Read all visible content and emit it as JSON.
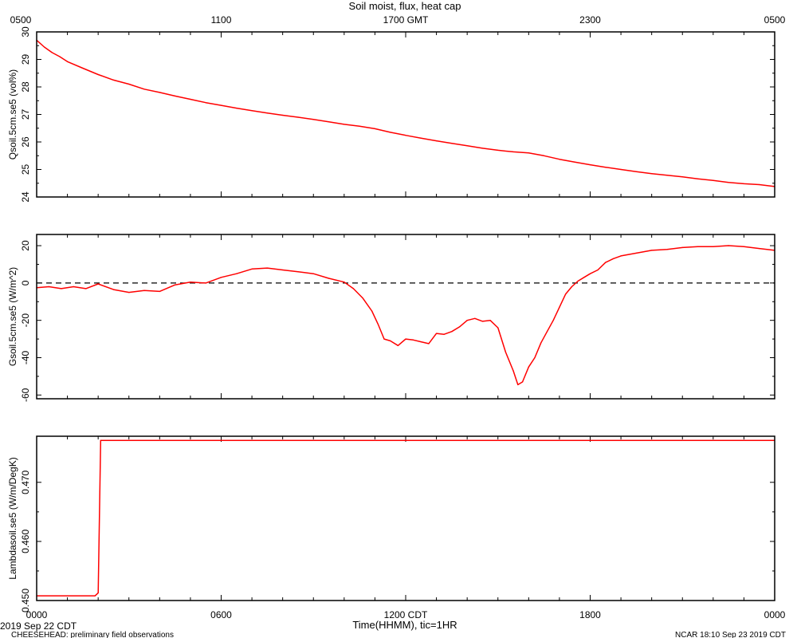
{
  "figure": {
    "title": "Soil moist, flux, heat cap",
    "top_axis_labels": [
      "0500",
      "1100",
      "1700 GMT",
      "2300",
      "0500"
    ],
    "bottom_axis_labels": [
      "0000",
      "0600",
      "1200 CDT",
      "1800",
      "0000"
    ],
    "xlabel": "Time(HHMM), tic=1HR",
    "date_label": "2019 Sep 22 CDT",
    "footer_left": "CHEESEHEAD: preliminary field observations",
    "footer_right": "NCAR 18:10 Sep 23 2019 CDT"
  },
  "chart_data": [
    {
      "type": "line",
      "ylabel": "Qsoil.5cm.se5 (vol%)",
      "ylim": [
        24,
        30
      ],
      "yticks": [
        24,
        25,
        26,
        27,
        28,
        29,
        30
      ],
      "ytick_labels": [
        "24",
        "25",
        "26",
        "27",
        "28",
        "29",
        "30"
      ],
      "xlim": [
        0,
        24
      ],
      "series": [
        {
          "color": "#ff0000",
          "x": [
            0,
            0.25,
            0.5,
            0.75,
            1,
            1.5,
            2,
            2.5,
            3,
            3.5,
            4,
            4.5,
            5,
            5.5,
            6,
            6.5,
            7,
            7.5,
            8,
            8.5,
            9,
            9.5,
            10,
            10.5,
            11,
            11.5,
            12,
            12.5,
            13,
            13.5,
            14,
            14.5,
            15,
            15.5,
            16,
            16.5,
            17,
            17.5,
            18,
            18.5,
            19,
            19.5,
            20,
            20.5,
            21,
            21.5,
            22,
            22.5,
            23,
            23.5,
            24
          ],
          "values": [
            29.7,
            29.45,
            29.25,
            29.1,
            28.92,
            28.68,
            28.45,
            28.25,
            28.1,
            27.92,
            27.8,
            27.67,
            27.55,
            27.43,
            27.33,
            27.23,
            27.14,
            27.05,
            26.97,
            26.9,
            26.82,
            26.73,
            26.64,
            26.57,
            26.48,
            26.35,
            26.24,
            26.14,
            26.04,
            25.95,
            25.86,
            25.77,
            25.7,
            25.64,
            25.6,
            25.5,
            25.37,
            25.27,
            25.17,
            25.08,
            25.0,
            24.92,
            24.85,
            24.79,
            24.73,
            24.66,
            24.6,
            24.53,
            24.48,
            24.45,
            24.38
          ]
        }
      ]
    },
    {
      "type": "line",
      "ylabel": "Gsoil.5cm.se5 (W/m^2)",
      "ylim": [
        -62,
        26
      ],
      "yticks": [
        -60,
        -40,
        -20,
        0,
        20
      ],
      "ytick_labels": [
        "-60",
        "-40",
        "-20",
        "0",
        "20"
      ],
      "xlim": [
        0,
        24
      ],
      "reference_line": 0,
      "series": [
        {
          "color": "#ff0000",
          "x": [
            0,
            0.4,
            0.8,
            1.2,
            1.6,
            2.0,
            2.5,
            3.0,
            3.5,
            4.0,
            4.5,
            5.0,
            5.5,
            6.0,
            6.5,
            7.0,
            7.5,
            8.0,
            8.5,
            9.0,
            9.5,
            10.0,
            10.3,
            10.6,
            10.9,
            11.1,
            11.3,
            11.5,
            11.75,
            12.0,
            12.25,
            12.5,
            12.75,
            13.0,
            13.25,
            13.5,
            13.75,
            14.0,
            14.25,
            14.5,
            14.75,
            15.0,
            15.25,
            15.5,
            15.65,
            15.8,
            16.0,
            16.2,
            16.4,
            16.6,
            16.8,
            17.0,
            17.2,
            17.4,
            17.6,
            17.8,
            18.0,
            18.25,
            18.5,
            18.75,
            19.0,
            19.5,
            20.0,
            20.5,
            21.0,
            21.5,
            22.0,
            22.5,
            23.0,
            23.5,
            24.0
          ],
          "values": [
            -2.5,
            -2.0,
            -3.0,
            -2.0,
            -3.0,
            -0.5,
            -3.5,
            -5.0,
            -4.0,
            -4.5,
            -1.0,
            0.5,
            0.0,
            3.0,
            5.0,
            7.5,
            8.0,
            7.0,
            6.0,
            5.0,
            2.5,
            0.5,
            -3.0,
            -8.0,
            -15.0,
            -22.0,
            -30.0,
            -31.0,
            -33.5,
            -30.0,
            -30.5,
            -31.5,
            -32.5,
            -27.0,
            -27.5,
            -26.0,
            -23.5,
            -20.0,
            -19.0,
            -20.5,
            -20.0,
            -24.0,
            -37.0,
            -47.0,
            -54.5,
            -53.0,
            -45.0,
            -40.0,
            -32.0,
            -26.0,
            -20.0,
            -13.0,
            -6.0,
            -2.0,
            1.0,
            3.0,
            5.0,
            7.0,
            11.0,
            13.0,
            14.5,
            16.0,
            17.5,
            18.0,
            19.0,
            19.5,
            19.5,
            20.0,
            19.5,
            18.5,
            17.5
          ]
        }
      ]
    },
    {
      "type": "line",
      "ylabel": "Lambdasoil.se5 (W/m/DegK)",
      "ylim": [
        0.45,
        0.4778
      ],
      "yticks": [
        0.45,
        0.46,
        0.47
      ],
      "ytick_labels": [
        "0.450",
        "0.460",
        "0.470"
      ],
      "xlim": [
        0,
        24
      ],
      "series": [
        {
          "color": "#ff0000",
          "x": [
            0,
            1.9,
            2.0,
            2.08,
            24
          ],
          "values": [
            0.4508,
            0.4508,
            0.4513,
            0.4771,
            0.4771
          ]
        }
      ]
    }
  ]
}
